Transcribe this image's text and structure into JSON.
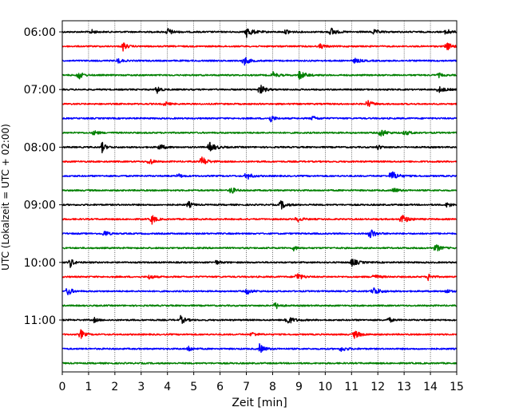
{
  "chart_data": {
    "type": "line",
    "title": "",
    "xlabel": "Zeit  [min]",
    "ylabel": "UTC (Lokalzeit = UTC + 02:00)",
    "xlim": [
      0,
      15
    ],
    "x_ticks": [
      "0",
      "1",
      "2",
      "3",
      "4",
      "5",
      "6",
      "7",
      "8",
      "9",
      "10",
      "11",
      "12",
      "13",
      "14",
      "15"
    ],
    "y_tick_labels": [
      "06:00",
      "07:00",
      "08:00",
      "09:00",
      "10:00",
      "11:00"
    ],
    "grid": "vertical dotted lines at each minute",
    "traces_per_hour": 4,
    "trace_interval_minutes": 15,
    "colors": [
      "#000000",
      "#ff0000",
      "#0000ff",
      "#008000"
    ],
    "series": [
      {
        "start": "06:00",
        "color": "#000000",
        "events_min": [
          1.1,
          4.0,
          7.0,
          8.5,
          10.2,
          11.8,
          14.6
        ]
      },
      {
        "start": "06:15",
        "color": "#ff0000",
        "events_min": [
          2.3,
          9.8,
          14.6
        ]
      },
      {
        "start": "06:30",
        "color": "#0000ff",
        "events_min": [
          2.1,
          6.9,
          11.1
        ]
      },
      {
        "start": "06:45",
        "color": "#008000",
        "events_min": [
          0.6,
          8.0,
          9.0,
          14.3
        ]
      },
      {
        "start": "07:00",
        "color": "#000000",
        "events_min": [
          3.6,
          7.5,
          14.3
        ]
      },
      {
        "start": "07:15",
        "color": "#ff0000",
        "events_min": [
          3.9,
          11.6
        ]
      },
      {
        "start": "07:30",
        "color": "#0000ff",
        "events_min": [
          7.9,
          9.5
        ]
      },
      {
        "start": "07:45",
        "color": "#008000",
        "events_min": [
          1.2,
          12.1,
          13.0
        ]
      },
      {
        "start": "08:00",
        "color": "#000000",
        "events_min": [
          1.5,
          3.7,
          5.6,
          12.0
        ]
      },
      {
        "start": "08:15",
        "color": "#ff0000",
        "events_min": [
          3.3,
          5.3
        ]
      },
      {
        "start": "08:30",
        "color": "#0000ff",
        "events_min": [
          4.4,
          7.0,
          12.5
        ]
      },
      {
        "start": "08:45",
        "color": "#008000",
        "events_min": [
          6.4,
          12.6
        ]
      },
      {
        "start": "09:00",
        "color": "#000000",
        "events_min": [
          4.8,
          8.3,
          14.6
        ]
      },
      {
        "start": "09:15",
        "color": "#ff0000",
        "events_min": [
          3.4,
          8.9,
          12.9
        ]
      },
      {
        "start": "09:30",
        "color": "#0000ff",
        "events_min": [
          1.6,
          11.7
        ]
      },
      {
        "start": "09:45",
        "color": "#008000",
        "events_min": [
          8.8,
          14.2
        ]
      },
      {
        "start": "10:00",
        "color": "#000000",
        "events_min": [
          0.3,
          5.8,
          11.0
        ]
      },
      {
        "start": "10:15",
        "color": "#ff0000",
        "events_min": [
          3.3,
          8.9,
          11.8,
          13.9
        ]
      },
      {
        "start": "10:30",
        "color": "#0000ff",
        "events_min": [
          0.2,
          7.0,
          11.8,
          14.6
        ]
      },
      {
        "start": "10:45",
        "color": "#008000",
        "events_min": [
          8.1
        ]
      },
      {
        "start": "11:00",
        "color": "#000000",
        "events_min": [
          1.2,
          4.5,
          8.5,
          12.4
        ]
      },
      {
        "start": "11:15",
        "color": "#ff0000",
        "events_min": [
          0.7,
          7.2,
          11.1
        ]
      },
      {
        "start": "11:30",
        "color": "#0000ff",
        "events_min": [
          4.8,
          7.5,
          10.6
        ]
      },
      {
        "start": "11:45",
        "color": "#008000",
        "events_min": []
      }
    ]
  }
}
